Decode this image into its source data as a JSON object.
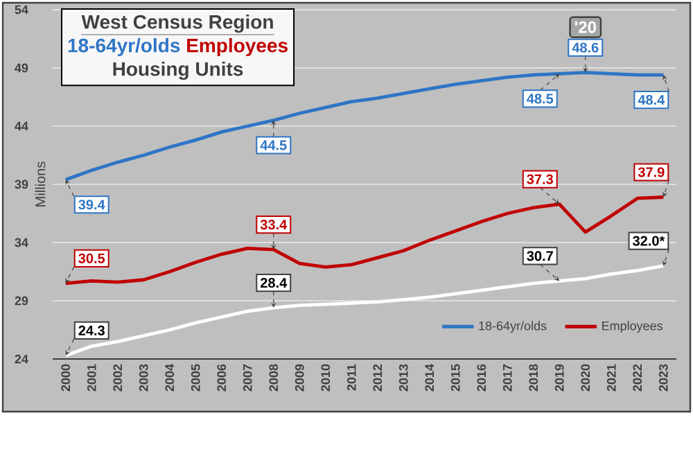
{
  "chart_data": {
    "type": "line",
    "title": "West Census Region",
    "ylabel": "Millions",
    "annotations": [
      "18-64yr/olds",
      "Employees",
      "Housing Units",
      {
        "text": "'20",
        "x": "2020",
        "y": 52.5
      }
    ],
    "categories": [
      "2000",
      "2001",
      "2002",
      "2003",
      "2004",
      "2005",
      "2006",
      "2007",
      "2008",
      "2009",
      "2010",
      "2011",
      "2012",
      "2013",
      "2014",
      "2015",
      "2016",
      "2017",
      "2018",
      "2019",
      "2020",
      "2021",
      "2022",
      "2023"
    ],
    "ylim": [
      24,
      54
    ],
    "yticks": [
      24,
      29,
      34,
      39,
      44,
      49,
      54
    ],
    "grid": "y",
    "legend": "bottom right",
    "marker": "none",
    "line_style": "solid",
    "series": [
      {
        "name": "18-64yr/olds",
        "color": "#2e75c6",
        "values": [
          39.4,
          40.2,
          40.9,
          41.5,
          42.2,
          42.8,
          43.5,
          44.0,
          44.5,
          45.1,
          45.6,
          46.1,
          46.4,
          46.8,
          47.2,
          47.6,
          47.9,
          48.2,
          48.4,
          48.5,
          48.6,
          48.5,
          48.4,
          48.4
        ],
        "value_labels": [
          "39.4",
          null,
          null,
          null,
          null,
          null,
          null,
          null,
          "44.5",
          null,
          null,
          null,
          null,
          null,
          null,
          null,
          null,
          null,
          null,
          "48.5",
          "48.6",
          null,
          null,
          "48.4"
        ]
      },
      {
        "name": "Employees",
        "color": "#c00000",
        "values": [
          30.5,
          30.7,
          30.6,
          30.8,
          31.5,
          32.3,
          33.0,
          33.5,
          33.4,
          32.2,
          31.9,
          32.1,
          32.7,
          33.3,
          34.2,
          35.0,
          35.8,
          36.5,
          37.0,
          37.3,
          34.9,
          36.3,
          37.8,
          37.9
        ],
        "value_labels": [
          "30.5",
          null,
          null,
          null,
          null,
          null,
          null,
          null,
          "33.4",
          null,
          null,
          null,
          null,
          null,
          null,
          null,
          null,
          null,
          null,
          "37.3",
          null,
          null,
          null,
          "37.9"
        ]
      },
      {
        "color": "#ffffff",
        "values": [
          24.3,
          25.1,
          25.5,
          26.0,
          26.5,
          27.1,
          27.6,
          28.1,
          28.4,
          28.6,
          28.7,
          28.8,
          28.9,
          29.1,
          29.3,
          29.6,
          29.9,
          30.2,
          30.5,
          30.7,
          30.9,
          31.3,
          31.6,
          32.0
        ],
        "value_labels": [
          "24.3",
          null,
          null,
          null,
          null,
          null,
          null,
          null,
          "28.4",
          null,
          null,
          null,
          null,
          null,
          null,
          null,
          null,
          null,
          null,
          "30.7",
          null,
          null,
          null,
          "32.0*"
        ]
      }
    ]
  }
}
